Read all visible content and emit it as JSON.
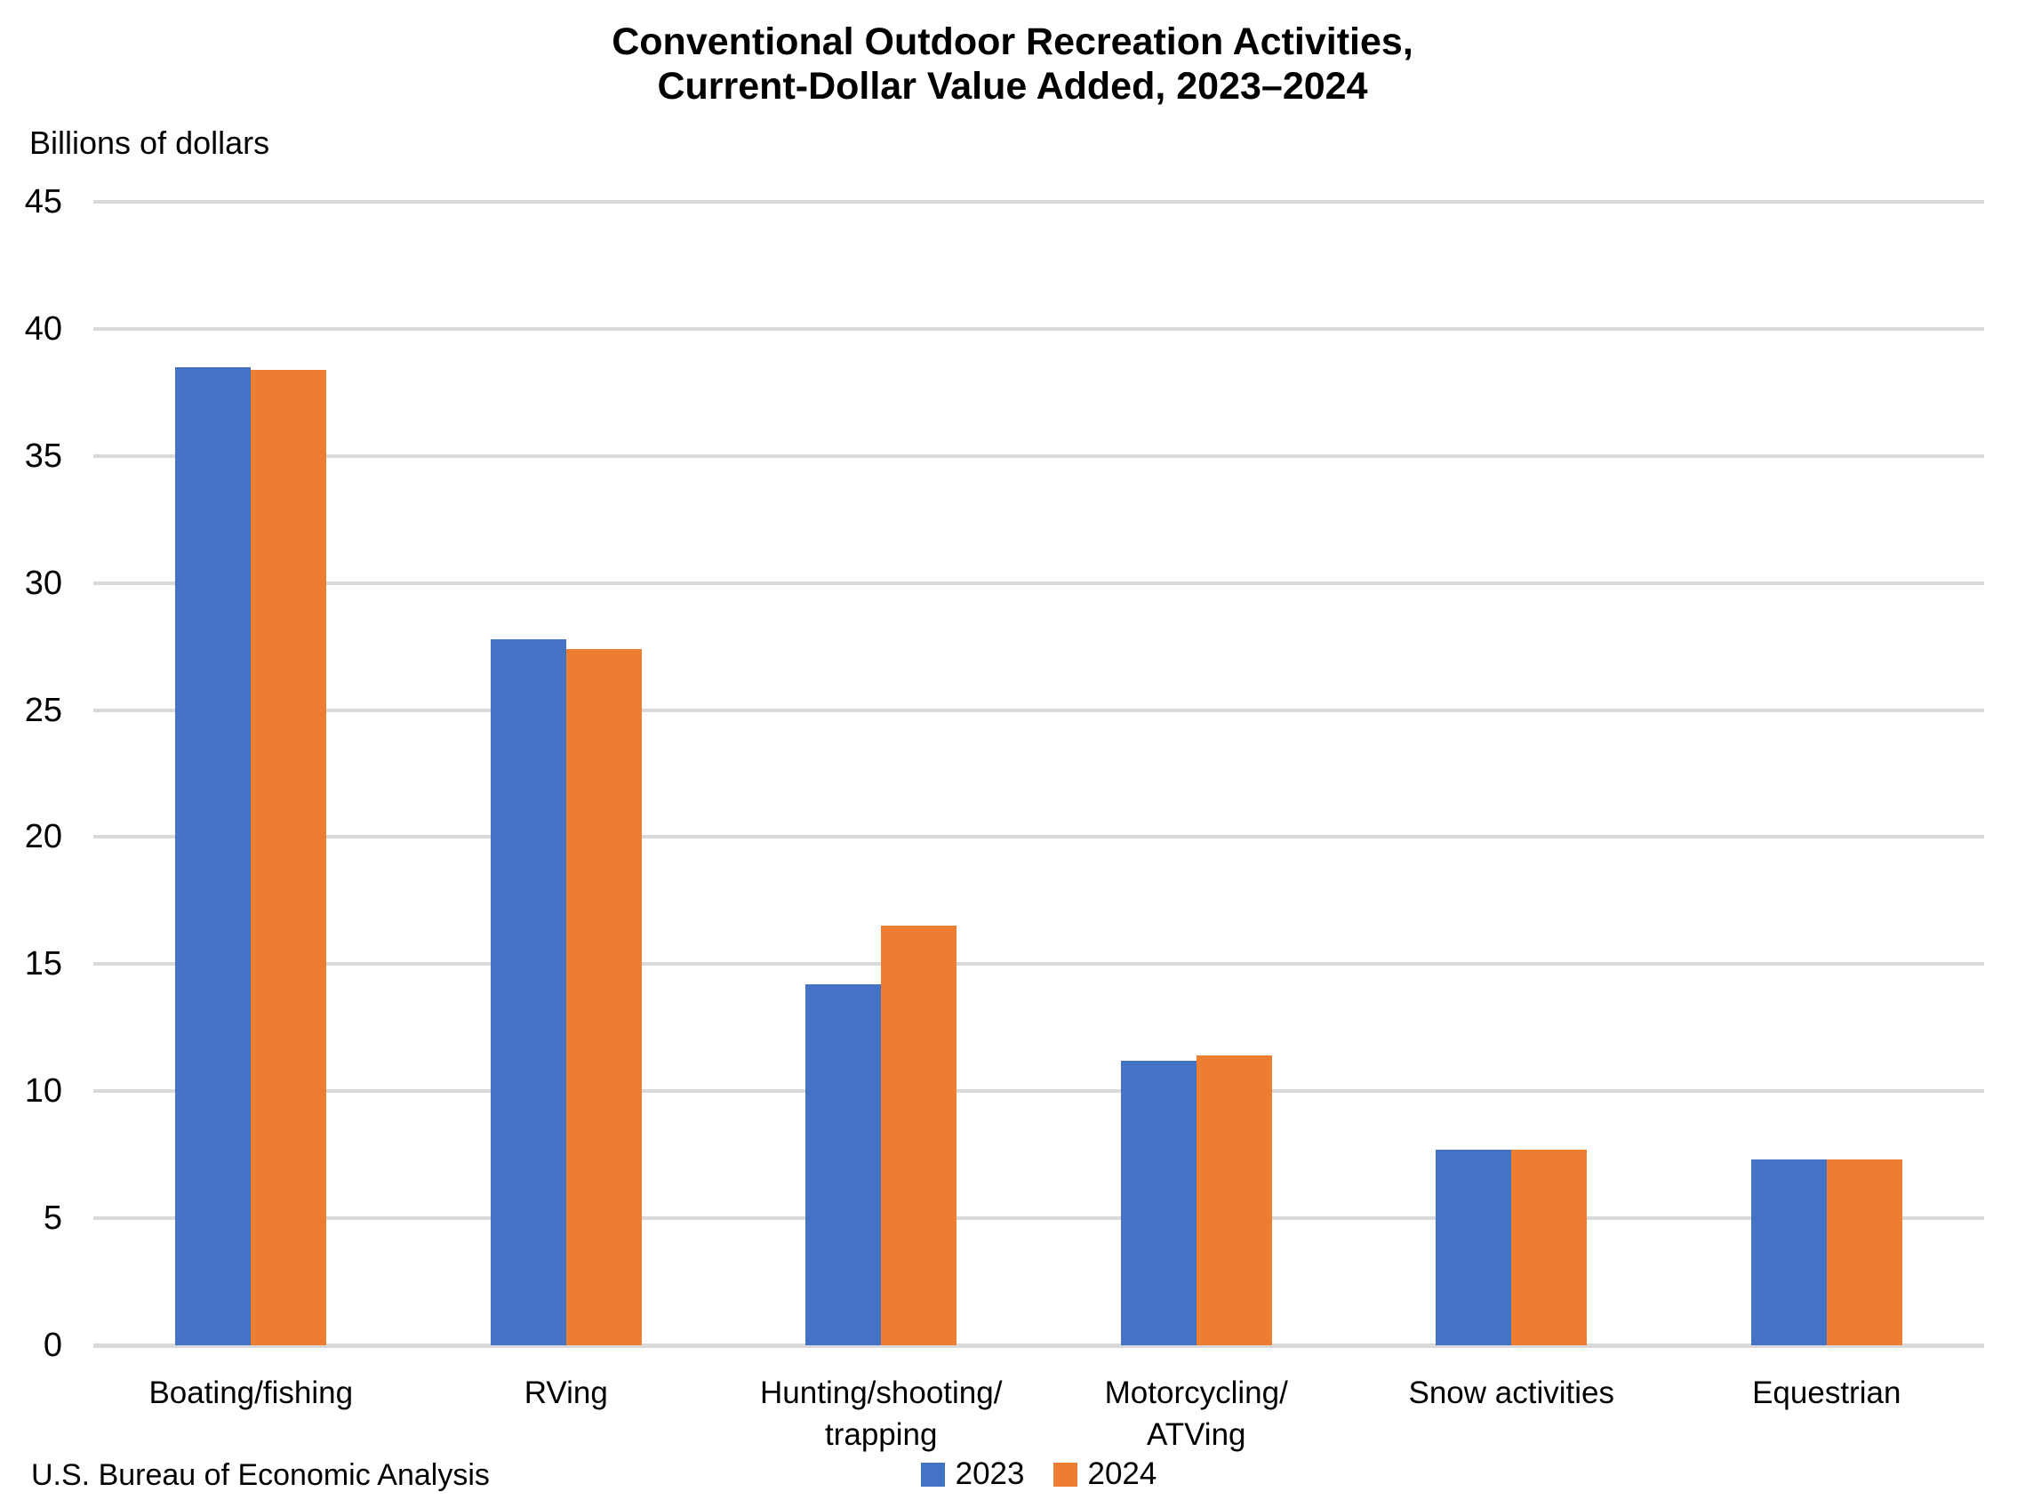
{
  "title": {
    "line1": "Conventional Outdoor Recreation Activities,",
    "line2": "Current-Dollar Value Added, 2023–2024"
  },
  "y_axis_label": "Billions of dollars",
  "source": "U.S. Bureau of Economic Analysis",
  "legend": {
    "items": [
      {
        "label": "2023",
        "color": "#4472C4"
      },
      {
        "label": "2024",
        "color": "#ED7D31"
      }
    ]
  },
  "colors": {
    "series_2023": "#4472C4",
    "series_2024": "#ED7D31",
    "gridline": "#D9D9D9",
    "axis_line": "#D9D9D9",
    "text": "#000000"
  },
  "chart_data": {
    "type": "bar",
    "title": "Conventional Outdoor Recreation Activities, Current-Dollar Value Added, 2023–2024",
    "categories": [
      "Boating/fishing",
      "RVing",
      "Hunting/shooting/\ntrapping",
      "Motorcycling/\nATVing",
      "Snow activities",
      "Equestrian"
    ],
    "series": [
      {
        "name": "2023",
        "color": "#4472C4",
        "values": [
          38.5,
          27.8,
          14.2,
          11.2,
          7.7,
          7.3
        ]
      },
      {
        "name": "2024",
        "color": "#ED7D31",
        "values": [
          38.4,
          27.4,
          16.5,
          11.4,
          7.7,
          7.3
        ]
      }
    ],
    "xlabel": "",
    "ylabel": "Billions of dollars",
    "ylim": [
      0,
      45
    ],
    "yticks": [
      0,
      5,
      10,
      15,
      20,
      25,
      30,
      35,
      40,
      45
    ],
    "grid": true,
    "legend_position": "bottom-center"
  }
}
